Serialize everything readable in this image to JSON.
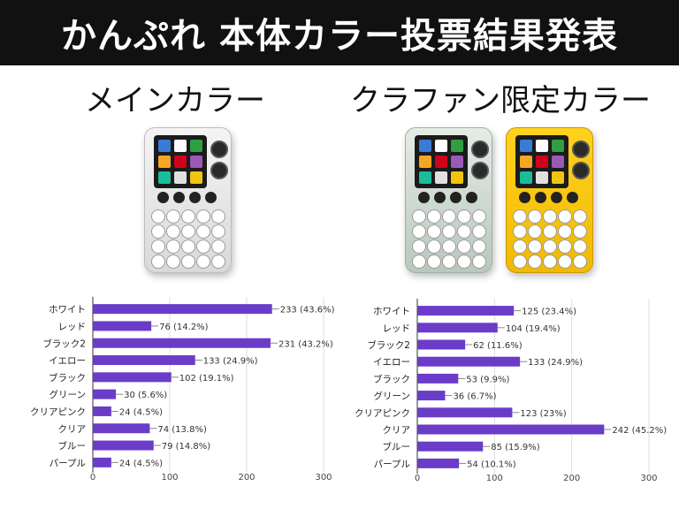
{
  "header": {
    "title": "かんぷれ 本体カラー投票結果発表"
  },
  "sections": {
    "main": {
      "title": "メインカラー"
    },
    "crowdfunding": {
      "title": "クラファン限定カラー"
    }
  },
  "colors": {
    "bar": "#6a3cc8",
    "banner_bg": "#111111",
    "banner_text": "#ffffff",
    "device_white": "#e8e8e8",
    "device_clear": "#cfd9d2",
    "device_yellow": "#f7c400"
  },
  "chart_data": [
    {
      "type": "bar",
      "orientation": "horizontal",
      "categories": [
        "ホワイト",
        "レッド",
        "ブラック2",
        "イエロー",
        "ブラック",
        "グリーン",
        "クリアピンク",
        "クリア",
        "ブルー",
        "パープル"
      ],
      "values": [
        233,
        76,
        231,
        133,
        102,
        30,
        24,
        74,
        79,
        24
      ],
      "data_labels": [
        "233 (43.6%)",
        "76 (14.2%)",
        "231 (43.2%)",
        "133 (24.9%)",
        "102 (19.1%)",
        "30 (5.6%)",
        "24 (4.5%)",
        "74 (13.8%)",
        "79 (14.8%)",
        "24 (4.5%)"
      ],
      "xlim": [
        0,
        300
      ],
      "xticks": [
        0,
        100,
        200,
        300
      ],
      "grid": true
    },
    {
      "type": "bar",
      "orientation": "horizontal",
      "categories": [
        "ホワイト",
        "レッド",
        "ブラック2",
        "イエロー",
        "ブラック",
        "グリーン",
        "クリアピンク",
        "クリア",
        "ブルー",
        "パープル"
      ],
      "values": [
        125,
        104,
        62,
        133,
        53,
        36,
        123,
        242,
        85,
        54
      ],
      "data_labels": [
        "125 (23.4%)",
        "104 (19.4%)",
        "62 (11.6%)",
        "133 (24.9%)",
        "53 (9.9%)",
        "36 (6.7%)",
        "123 (23%)",
        "242 (45.2%)",
        "85 (15.9%)",
        "54 (10.1%)"
      ],
      "xlim": [
        0,
        300
      ],
      "xticks": [
        0,
        100,
        200,
        300
      ],
      "grid": true
    }
  ]
}
